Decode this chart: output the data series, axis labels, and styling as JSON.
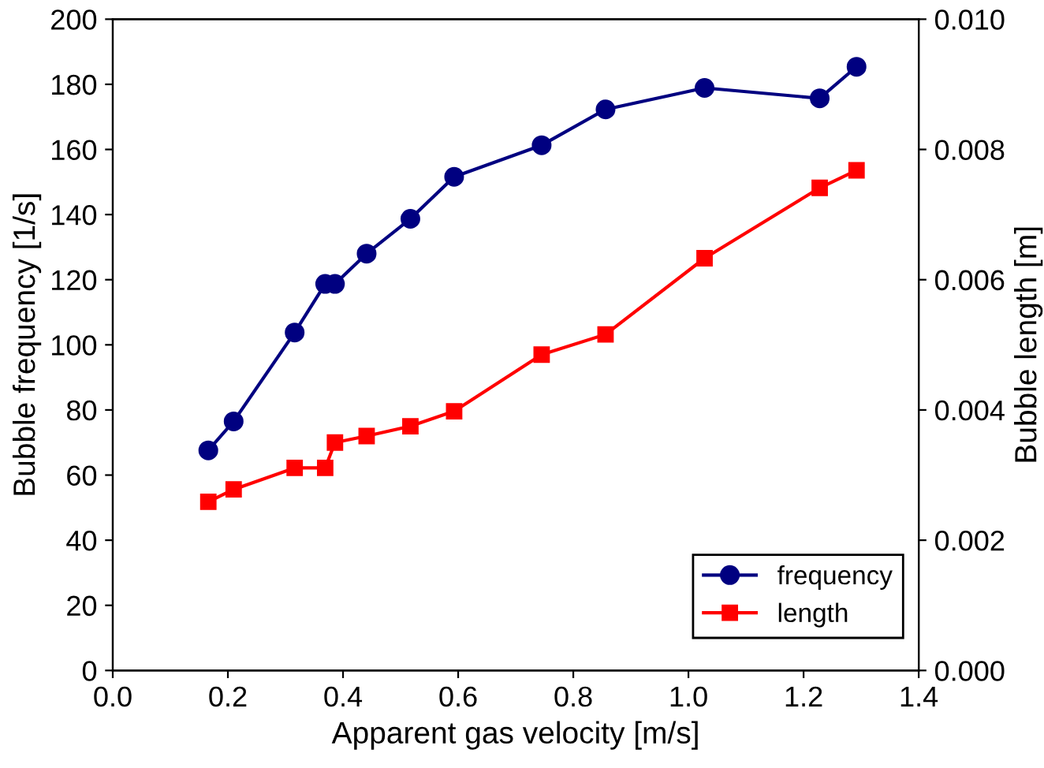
{
  "chart_data": {
    "type": "line",
    "xlabel": "Apparent gas velocity [m/s]",
    "ylabel": "Bubble frequency [1/s]",
    "y2label": "Bubble length [m]",
    "xlim": [
      0,
      1.4
    ],
    "xticks": [
      {
        "value": 0,
        "label": "0.0"
      },
      {
        "value": 0.2,
        "label": "0.2"
      },
      {
        "value": 0.4,
        "label": "0.4"
      },
      {
        "value": 0.6,
        "label": "0.6"
      },
      {
        "value": 0.8,
        "label": "0.8"
      },
      {
        "value": 1,
        "label": "1.0"
      },
      {
        "value": 1.2,
        "label": "1.2"
      },
      {
        "value": 1.4,
        "label": "1.4"
      }
    ],
    "ylim": [
      0,
      200
    ],
    "yticks": [
      0,
      20,
      40,
      60,
      80,
      100,
      120,
      140,
      160,
      180,
      200
    ],
    "y2lim": [
      0,
      0.01
    ],
    "y2ticks": [
      {
        "value": 0,
        "label": "0.000"
      },
      {
        "value": 0.002,
        "label": "0.002"
      },
      {
        "value": 0.004,
        "label": "0.004"
      },
      {
        "value": 0.006,
        "label": "0.006"
      },
      {
        "value": 0.008,
        "label": "0.008"
      },
      {
        "value": 0.01,
        "label": "0.010"
      }
    ],
    "x": [
      0.166,
      0.21,
      0.316,
      0.369,
      0.386,
      0.441,
      0.517,
      0.593,
      0.745,
      0.856,
      1.028,
      1.228,
      1.292
    ],
    "series": [
      {
        "name": "frequency",
        "color": "#000080",
        "marker": "circle",
        "values": [
          67.6,
          76.5,
          103.8,
          118.7,
          118.7,
          128,
          138.7,
          151.6,
          161.3,
          172.3,
          178.9,
          175.7,
          185.4
        ]
      },
      {
        "name": "length",
        "color": "#ff0000",
        "marker": "square",
        "axis": "y2",
        "values": [
          0.00259,
          0.00278,
          0.00311,
          0.00311,
          0.0035,
          0.0036,
          0.00375,
          0.00398,
          0.00485,
          0.00516,
          0.00633,
          0.00741,
          0.00768
        ]
      }
    ],
    "legend": "bottom right",
    "grid": false
  }
}
